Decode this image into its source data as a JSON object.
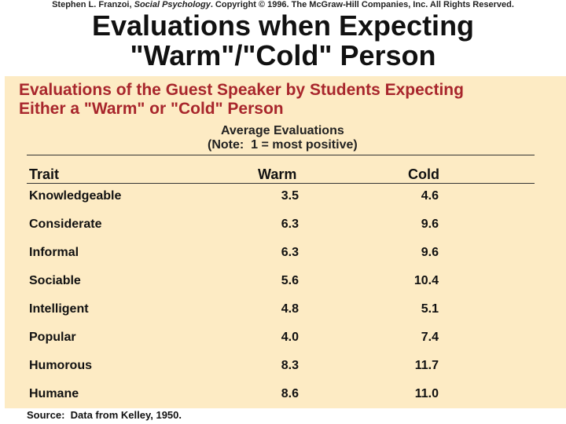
{
  "header": {
    "copyright_pre": "Stephen L. Franzoi, ",
    "copyright_book": "Social Psychology",
    "copyright_post": ". Copyright © 1996. The McGraw-Hill Companies, Inc. All Rights Reserved.",
    "title_line1": "Evaluations when Expecting",
    "title_line2": "\"Warm\"/\"Cold\" Person"
  },
  "panel": {
    "title_line1": "Evaluations of the Guest Speaker by Students Expecting",
    "title_line2": "Either a \"Warm\" or \"Cold\" Person",
    "subtitle_line1": "Average Evaluations",
    "subtitle_line2": "(Note:  1 = most positive)"
  },
  "table": {
    "headers": {
      "trait": "Trait",
      "warm": "Warm",
      "cold": "Cold"
    },
    "rows": [
      {
        "trait": "Knowledgeable",
        "warm": "3.5",
        "cold": "4.6"
      },
      {
        "trait": "Considerate",
        "warm": "6.3",
        "cold": "9.6"
      },
      {
        "trait": "Informal",
        "warm": "6.3",
        "cold": "9.6"
      },
      {
        "trait": "Sociable",
        "warm": "5.6",
        "cold": "10.4"
      },
      {
        "trait": "Intelligent",
        "warm": "4.8",
        "cold": "5.1"
      },
      {
        "trait": "Popular",
        "warm": "4.0",
        "cold": "7.4"
      },
      {
        "trait": "Humorous",
        "warm": "8.3",
        "cold": "11.7"
      },
      {
        "trait": "Humane",
        "warm": "8.6",
        "cold": "11.0"
      }
    ]
  },
  "footer": {
    "source": "Source:  Data from Kelley, 1950."
  },
  "colors": {
    "panel_bg": "#fdebc4",
    "panel_title": "#a8262c"
  }
}
